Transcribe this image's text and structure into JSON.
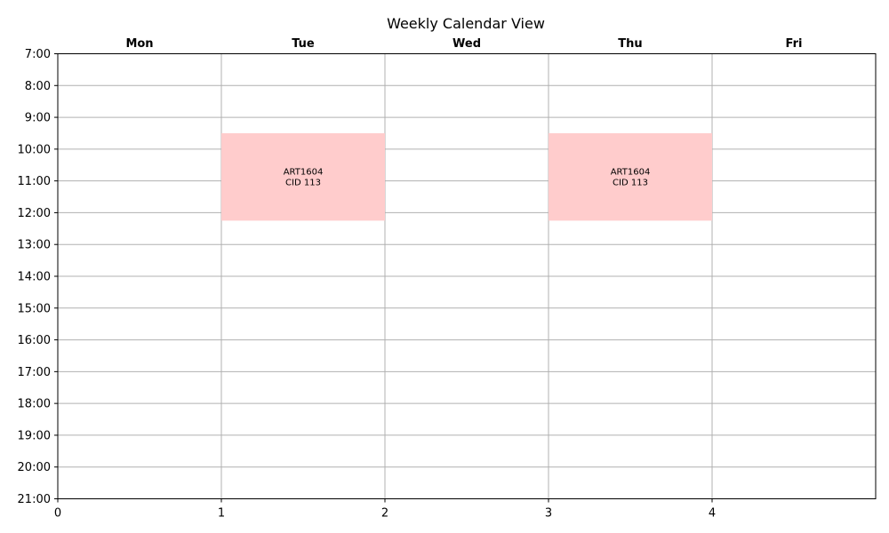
{
  "chart_data": {
    "type": "calendar",
    "title": "Weekly Calendar View",
    "days": [
      "Mon",
      "Tue",
      "Wed",
      "Thu",
      "Fri"
    ],
    "x_ticks": [
      0,
      1,
      2,
      3,
      4
    ],
    "xlim": [
      0,
      5
    ],
    "y_range_hours": [
      7,
      21
    ],
    "y_tick_labels": [
      "7:00",
      "8:00",
      "9:00",
      "10:00",
      "11:00",
      "12:00",
      "13:00",
      "14:00",
      "15:00",
      "16:00",
      "17:00",
      "18:00",
      "19:00",
      "20:00",
      "21:00"
    ],
    "grid": true,
    "events": [
      {
        "day_index": 1,
        "day": "Tue",
        "start": 9.5,
        "end": 12.25,
        "course": "ART1604",
        "cid": "CID 113",
        "color": "#ffcccc"
      },
      {
        "day_index": 3,
        "day": "Thu",
        "start": 9.5,
        "end": 12.25,
        "course": "ART1604",
        "cid": "CID 113",
        "color": "#ffcccc"
      }
    ]
  }
}
